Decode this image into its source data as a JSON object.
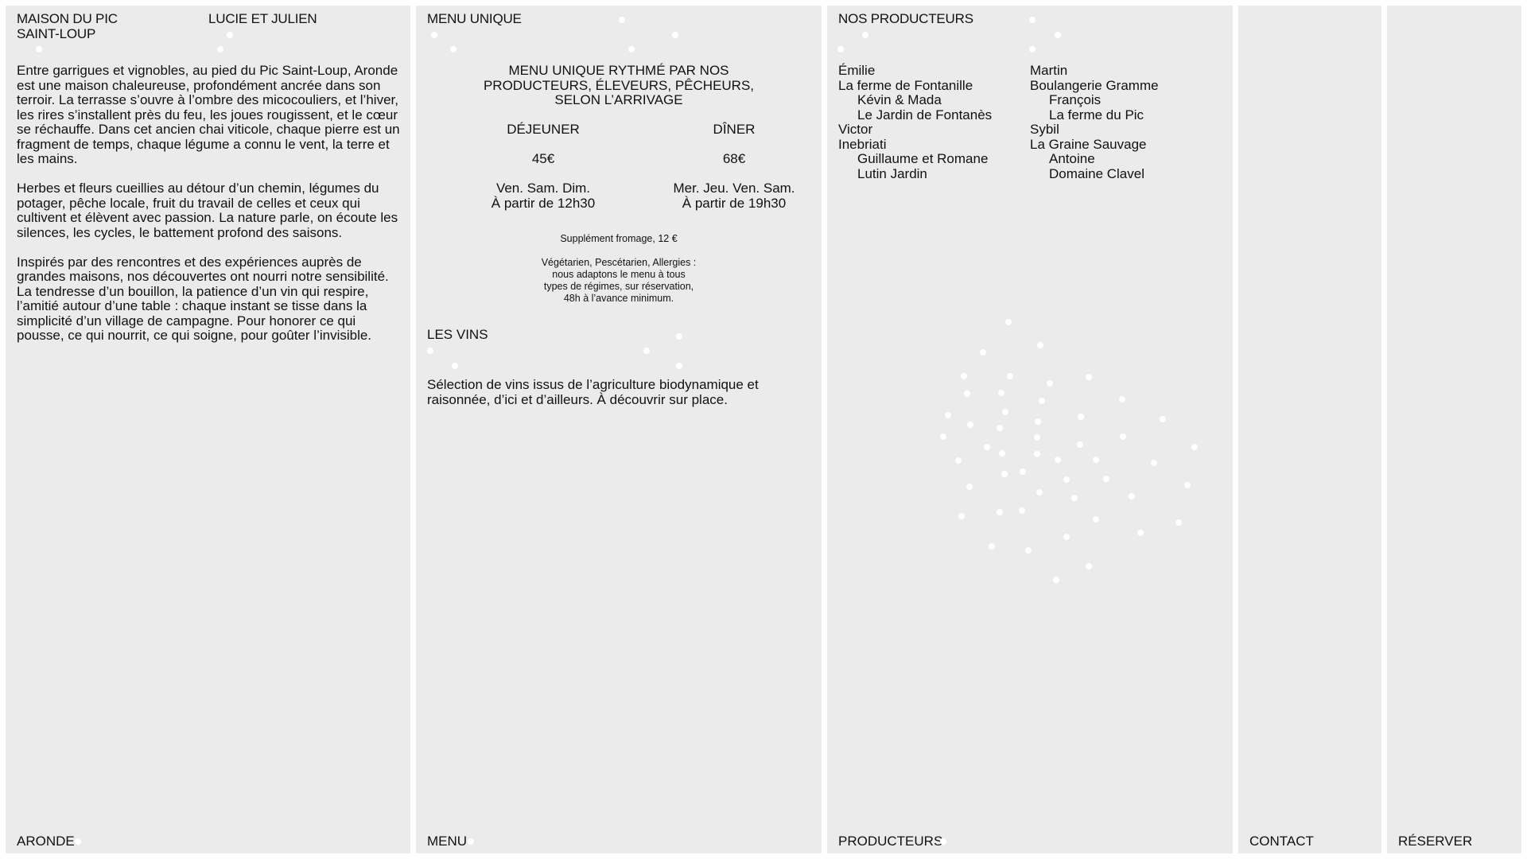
{
  "about": {
    "title_line1": "MAISON DU PIC",
    "title_line2": "SAINT-LOUP",
    "subtitle": "LUCIE ET JULIEN",
    "paragraphs": [
      "Entre garrigues et vignobles, au pied du Pic Saint-Loup, Aronde est une maison chaleureuse, profondément ancrée dans son terroir. La terrasse s’ouvre à l’ombre des micocouliers, et l’hiver, les rires s’installent près du feu, les joues rougissent, et le cœur se réchauffe. Dans cet ancien chai viticole, chaque pierre est un fragment de temps, chaque légume a connu le vent, la terre et les mains.",
      "Herbes et fleurs cueillies au détour d’un chemin, légumes du potager, pêche locale, fruit du travail de celles et ceux qui cultivent et élèvent avec passion. La nature parle, on écoute les silences, les cycles, le battement profond des saisons.",
      "Inspirés par des rencontres et des expériences auprès de grandes maisons, nos découvertes ont nourri notre sensibilité. La tendresse d’un bouillon, la patience d’un vin qui respire, l’amitié autour d’une table : chaque instant se tisse dans la simplicité d’un village de campagne. Pour honorer ce qui pousse, ce qui nourrit, ce qui soigne, pour goûter l’invisible."
    ],
    "footer": "ARONDE"
  },
  "menu": {
    "title": "MENU UNIQUE",
    "headline": [
      "MENU UNIQUE RYTHMÉ PAR NOS",
      "PRODUCTEURS, ÉLEVEURS, PÊCHEURS,",
      "SELON L’ARRIVAGE"
    ],
    "lunch": {
      "label": "DÉJEUNER",
      "price": "45€",
      "days": "Ven. Sam. Dim.",
      "time": "À partir de 12h30"
    },
    "dinner": {
      "label": "DÎNER",
      "price": "68€",
      "days": "Mer. Jeu. Ven. Sam.",
      "time": "À partir de 19h30"
    },
    "supplement": "Supplément fromage, 12 €",
    "diet": [
      "Végétarien, Pescétarien, Allergies :",
      "nous adaptons le menu à tous",
      "types de régimes, sur réservation,",
      "48h à l’avance minimum."
    ],
    "wines_title": "LES VINS",
    "wines_text": "Sélection de vins issus de l’agriculture biodynamique et raisonnée, d’ici et d’ailleurs. À découvrir sur place.",
    "footer": "MENU"
  },
  "producers": {
    "title": "NOS PRODUCTEURS",
    "left": [
      {
        "name": "Émilie",
        "indent": false
      },
      {
        "name": "La ferme de Fontanille",
        "indent": false
      },
      {
        "name": "Kévin & Mada",
        "indent": true
      },
      {
        "name": "Le Jardin de Fontanès",
        "indent": true
      },
      {
        "name": "Victor",
        "indent": false
      },
      {
        "name": "Inebriati",
        "indent": false
      },
      {
        "name": "Guillaume et Romane",
        "indent": true
      },
      {
        "name": "Lutin Jardin",
        "indent": true
      }
    ],
    "right": [
      {
        "name": "Martin",
        "indent": false
      },
      {
        "name": "Boulangerie Gramme",
        "indent": false
      },
      {
        "name": "François",
        "indent": true
      },
      {
        "name": "La ferme du Pic",
        "indent": true
      },
      {
        "name": "Sybil",
        "indent": false
      },
      {
        "name": "La Graine Sauvage",
        "indent": false
      },
      {
        "name": "Antoine",
        "indent": true
      },
      {
        "name": "Domaine Clavel",
        "indent": true
      }
    ],
    "footer": "PRODUCTEURS"
  },
  "contact": {
    "footer": "CONTACT"
  },
  "reserve": {
    "footer": "RÉSERVER"
  },
  "colors": {
    "panel": "#ebebeb",
    "text": "#111111",
    "dot": "#ffffff"
  }
}
